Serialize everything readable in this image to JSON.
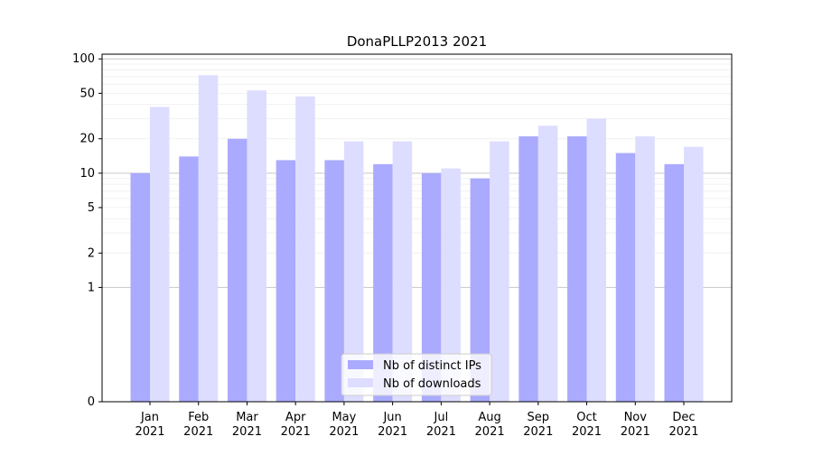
{
  "chart_data": {
    "type": "bar",
    "title": "DonaPLLP2013 2021",
    "xlabel": "",
    "ylabel": "",
    "yscale": "symlog",
    "ylim": [
      0,
      110
    ],
    "yticks": [
      0,
      1,
      2,
      5,
      10,
      20,
      50,
      100
    ],
    "grid": "y",
    "legend_position": "bottom-center",
    "categories": [
      "Jan\n2021",
      "Feb\n2021",
      "Mar\n2021",
      "Apr\n2021",
      "May\n2021",
      "Jun\n2021",
      "Jul\n2021",
      "Aug\n2021",
      "Sep\n2021",
      "Oct\n2021",
      "Nov\n2021",
      "Dec\n2021"
    ],
    "series": [
      {
        "name": "Nb of distinct IPs",
        "color": "#aaaaff",
        "values": [
          10,
          14,
          20,
          13,
          13,
          12,
          10,
          9,
          21,
          21,
          15,
          12
        ]
      },
      {
        "name": "Nb of downloads",
        "color": "#ddddff",
        "values": [
          38,
          72,
          53,
          47,
          19,
          19,
          11,
          19,
          26,
          30,
          21,
          17
        ]
      }
    ]
  }
}
